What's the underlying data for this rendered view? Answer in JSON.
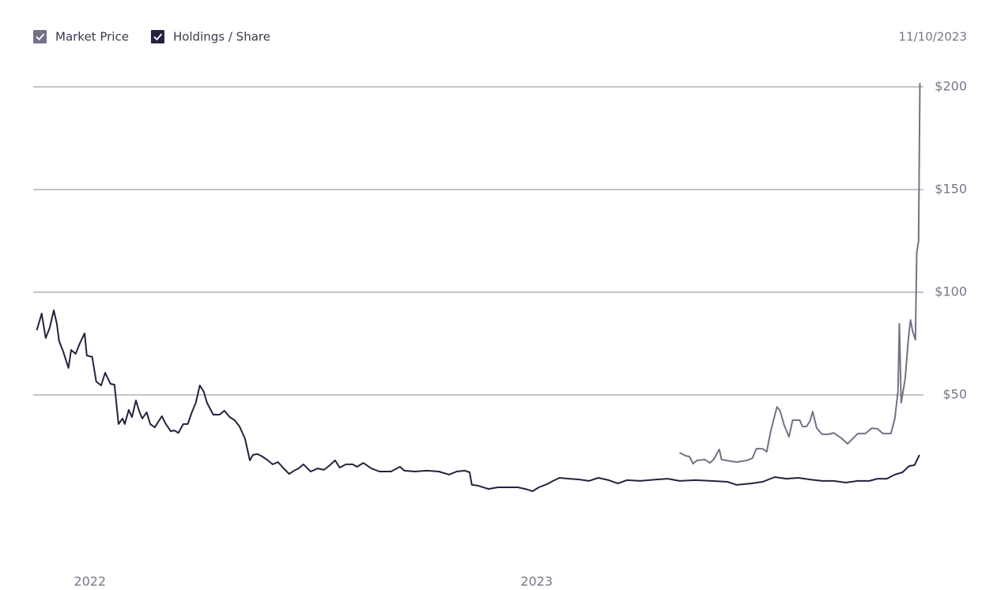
{
  "chart_data": {
    "type": "line",
    "annotation": "11/10/2023",
    "xlim": [
      2021.873,
      2023.866
    ],
    "xticks": [
      2022,
      2023
    ],
    "ylim": [
      0,
      200
    ],
    "yticks": [
      {
        "value": 50,
        "label": "$50"
      },
      {
        "value": 100,
        "label": "$100"
      },
      {
        "value": 150,
        "label": "$150"
      },
      {
        "value": 200,
        "label": "$200"
      }
    ],
    "grid": true,
    "legend": "top-left",
    "series": [
      {
        "name": "Market Price",
        "color": "#767086",
        "x": [
          2023.32,
          2023.333,
          2023.342,
          2023.35,
          2023.359,
          2023.377,
          2023.388,
          2023.396,
          2023.409,
          2023.414,
          2023.435,
          2023.448,
          2023.471,
          2023.483,
          2023.492,
          2023.506,
          2023.515,
          2023.524,
          2023.533,
          2023.538,
          2023.545,
          2023.554,
          2023.565,
          2023.573,
          2023.589,
          2023.595,
          2023.604,
          2023.612,
          2023.618,
          2023.627,
          2023.639,
          2023.653,
          2023.665,
          2023.683,
          2023.696,
          2023.719,
          2023.736,
          2023.75,
          2023.763,
          2023.775,
          2023.793,
          2023.802,
          2023.809,
          2023.812,
          2023.816,
          2023.825,
          2023.832,
          2023.837,
          2023.842,
          2023.848,
          2023.851,
          2023.855,
          2023.858
        ],
        "values": [
          21.9,
          20.4,
          20,
          16.5,
          18.1,
          18.5,
          16.9,
          18.5,
          23.5,
          18.5,
          17.7,
          17.3,
          18.1,
          19.2,
          23.8,
          23.8,
          22.3,
          32.3,
          40,
          44.2,
          42.3,
          35.4,
          29.6,
          37.7,
          37.7,
          34.6,
          34.6,
          37.3,
          41.9,
          33.8,
          30.8,
          30.8,
          31.5,
          28.8,
          26.2,
          31.2,
          31.2,
          33.8,
          33.5,
          31.2,
          31.2,
          38.5,
          51.9,
          84.6,
          46.2,
          57.7,
          76.9,
          86.5,
          80.8,
          76.9,
          119.2,
          125,
          201.9
        ]
      },
      {
        "name": "Holdings / Share",
        "color": "#25213f",
        "x": [
          2021.881,
          2021.892,
          2021.901,
          2021.91,
          2021.919,
          2021.926,
          2021.931,
          2021.94,
          2021.952,
          2021.958,
          2021.968,
          2021.977,
          2021.988,
          2021.993,
          2022.005,
          2022.014,
          2022.025,
          2022.034,
          2022.046,
          2022.055,
          2022.064,
          2022.073,
          2022.078,
          2022.087,
          2022.094,
          2022.103,
          2022.11,
          2022.117,
          2022.127,
          2022.135,
          2022.145,
          2022.161,
          2022.17,
          2022.181,
          2022.189,
          2022.198,
          2022.209,
          2022.219,
          2022.228,
          2022.237,
          2022.246,
          2022.255,
          2022.262,
          2022.276,
          2022.29,
          2022.301,
          2022.313,
          2022.324,
          2022.335,
          2022.347,
          2022.358,
          2022.365,
          2022.375,
          2022.386,
          2022.396,
          2022.409,
          2022.421,
          2022.432,
          2022.446,
          2022.457,
          2022.467,
          2022.478,
          2022.494,
          2022.51,
          2022.524,
          2022.535,
          2022.549,
          2022.559,
          2022.573,
          2022.588,
          2022.598,
          2022.612,
          2022.63,
          2022.648,
          2022.674,
          2022.694,
          2022.704,
          2022.727,
          2022.754,
          2022.781,
          2022.804,
          2022.821,
          2022.839,
          2022.85,
          2022.855,
          2022.869,
          2022.892,
          2022.913,
          2022.94,
          2022.958,
          2022.975,
          2022.991,
          2023.005,
          2023.023,
          2023.037,
          2023.051,
          2023.073,
          2023.096,
          2023.117,
          2023.138,
          2023.161,
          2023.182,
          2023.202,
          2023.232,
          2023.267,
          2023.294,
          2023.32,
          2023.356,
          2023.391,
          2023.427,
          2023.448,
          2023.48,
          2023.506,
          2023.533,
          2023.559,
          2023.586,
          2023.612,
          2023.639,
          2023.665,
          2023.692,
          2023.719,
          2023.745,
          2023.763,
          2023.784,
          2023.802,
          2023.819,
          2023.834,
          2023.846,
          2023.857
        ],
        "values": [
          81.5,
          89.6,
          77.7,
          82.7,
          91.2,
          84.6,
          76.2,
          71.2,
          63.1,
          71.9,
          70,
          75,
          80,
          69.2,
          68.5,
          56.5,
          54.6,
          60.8,
          55.4,
          55,
          35.8,
          38.5,
          35.8,
          42.7,
          39.2,
          47.3,
          42.3,
          38.5,
          41.5,
          35.8,
          34.2,
          39.6,
          35.8,
          32.3,
          32.7,
          31.5,
          35.8,
          35.8,
          41.5,
          46.2,
          54.6,
          51.5,
          46.2,
          40.4,
          40.4,
          42.3,
          39.2,
          37.7,
          34.6,
          28.8,
          18.1,
          20.8,
          21.2,
          20,
          18.5,
          16.2,
          17.3,
          14.6,
          11.5,
          13.1,
          14.2,
          16.2,
          12.7,
          14.2,
          13.5,
          15.4,
          18.1,
          14.6,
          16.2,
          16.2,
          15,
          16.9,
          14.2,
          12.7,
          12.7,
          15,
          13.1,
          12.7,
          13.1,
          12.7,
          11.2,
          12.7,
          13.1,
          12.3,
          6.2,
          5.8,
          4.2,
          5,
          5,
          5,
          4.2,
          3.1,
          5,
          6.5,
          8.1,
          9.6,
          9.2,
          8.8,
          8.1,
          9.6,
          8.5,
          6.9,
          8.5,
          8.1,
          8.8,
          9.2,
          8.1,
          8.5,
          8.1,
          7.7,
          6.2,
          6.9,
          7.7,
          10,
          9.2,
          9.6,
          8.8,
          8.1,
          8.1,
          7.3,
          8.1,
          8.1,
          9.2,
          9.2,
          11.2,
          12.3,
          15.4,
          15.8,
          20.8
        ]
      }
    ]
  }
}
